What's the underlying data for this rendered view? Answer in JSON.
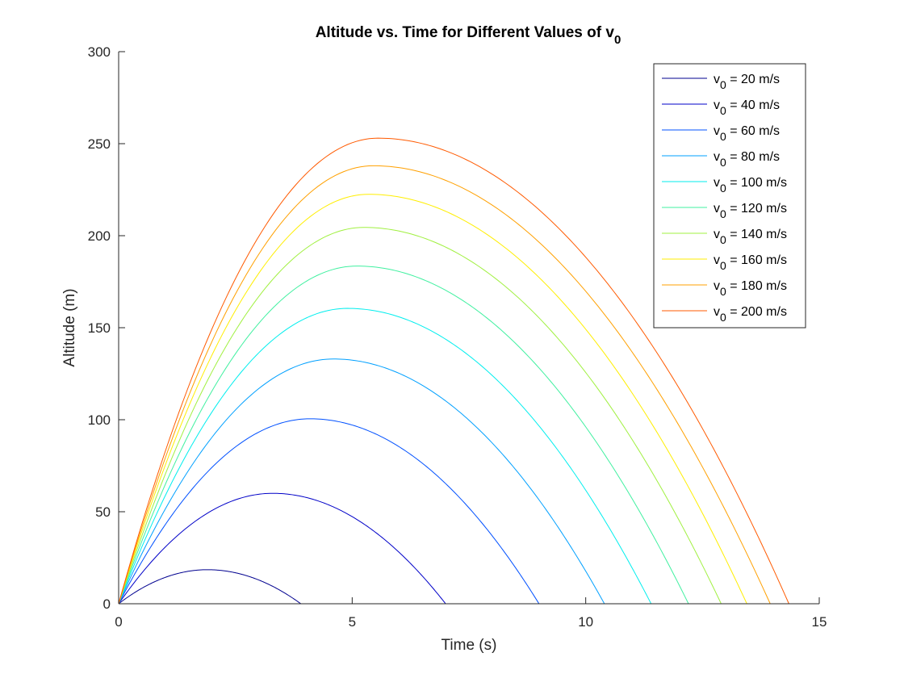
{
  "chart_data": {
    "type": "line",
    "title": "Altitude vs. Time for Different Values of v",
    "title_subscript": "0",
    "xlabel": "Time (s)",
    "ylabel": "Altitude (m)",
    "xlim": [
      0,
      15
    ],
    "ylim": [
      0,
      300
    ],
    "xticks": [
      "0",
      "5",
      "10",
      "15"
    ],
    "yticks": [
      "0",
      "50",
      "100",
      "150",
      "200",
      "250",
      "300"
    ],
    "grid": false,
    "legend_position": "top-right",
    "series": [
      {
        "name_prefix": "v",
        "name_sub": "0",
        "name_suffix": " = 20 m/s",
        "color": "#00008f",
        "peak": {
          "x": 1.9,
          "y": 18.5
        },
        "landing_x": 3.9
      },
      {
        "name_prefix": "v",
        "name_sub": "0",
        "name_suffix": " = 40 m/s",
        "color": "#0000c8",
        "peak": {
          "x": 3.3,
          "y": 60.0
        },
        "landing_x": 7.0
      },
      {
        "name_prefix": "v",
        "name_sub": "0",
        "name_suffix": " = 60 m/s",
        "color": "#0050ff",
        "peak": {
          "x": 4.1,
          "y": 100.5
        },
        "landing_x": 9.0
      },
      {
        "name_prefix": "v",
        "name_sub": "0",
        "name_suffix": " = 80 m/s",
        "color": "#00a0ff",
        "peak": {
          "x": 4.6,
          "y": 133.0
        },
        "landing_x": 10.4
      },
      {
        "name_prefix": "v",
        "name_sub": "0",
        "name_suffix": " = 100 m/s",
        "color": "#00eeee",
        "peak": {
          "x": 4.9,
          "y": 160.5
        },
        "landing_x": 11.4
      },
      {
        "name_prefix": "v",
        "name_sub": "0",
        "name_suffix": " = 120 m/s",
        "color": "#40f0a0",
        "peak": {
          "x": 5.1,
          "y": 183.5
        },
        "landing_x": 12.2
      },
      {
        "name_prefix": "v",
        "name_sub": "0",
        "name_suffix": " = 140 m/s",
        "color": "#a0f040",
        "peak": {
          "x": 5.25,
          "y": 204.5
        },
        "landing_x": 12.9
      },
      {
        "name_prefix": "v",
        "name_sub": "0",
        "name_suffix": " = 160 m/s",
        "color": "#ffee00",
        "peak": {
          "x": 5.35,
          "y": 222.5
        },
        "landing_x": 13.45
      },
      {
        "name_prefix": "v",
        "name_sub": "0",
        "name_suffix": " = 180 m/s",
        "color": "#ffa000",
        "peak": {
          "x": 5.45,
          "y": 238.0
        },
        "landing_x": 13.95
      },
      {
        "name_prefix": "v",
        "name_sub": "0",
        "name_suffix": " = 200 m/s",
        "color": "#ff5a00",
        "peak": {
          "x": 5.55,
          "y": 253.0
        },
        "landing_x": 14.35
      }
    ]
  }
}
